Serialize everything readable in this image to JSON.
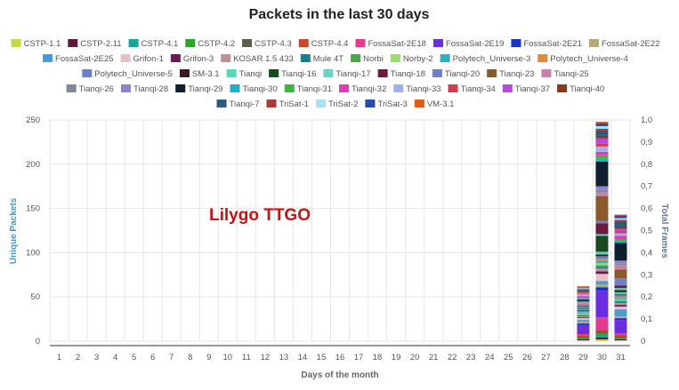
{
  "chart_data": {
    "type": "bar",
    "stacked": true,
    "title": "Packets in the last 30 days",
    "xlabel": "Days of the month",
    "ylabel": "Unique Packets",
    "y2label": "Total Frames",
    "watermark": "Lilygo TTGO",
    "categories": [
      "1",
      "2",
      "3",
      "4",
      "5",
      "6",
      "7",
      "8",
      "9",
      "10",
      "11",
      "12",
      "13",
      "14",
      "15",
      "16",
      "17",
      "18",
      "19",
      "20",
      "21",
      "22",
      "23",
      "24",
      "25",
      "26",
      "27",
      "28",
      "29",
      "30",
      "31"
    ],
    "ylim": [
      0,
      250
    ],
    "yticks": [
      "0",
      "50",
      "100",
      "150",
      "200",
      "250"
    ],
    "y2lim": [
      0,
      1
    ],
    "y2ticks": [
      "0",
      "0,1",
      "0,2",
      "0,3",
      "0,4",
      "0,5",
      "0,6",
      "0,7",
      "0,8",
      "0,9",
      "1,0"
    ],
    "grid": true,
    "legend_position": "top",
    "series": [
      {
        "name": "CSTP-1.1",
        "color": "#c6d84a",
        "values": {
          "29": 1,
          "30": 2,
          "31": 1
        }
      },
      {
        "name": "CSTP-2.11",
        "color": "#5b1a3a",
        "values": {
          "29": 1,
          "30": 2,
          "31": 1
        }
      },
      {
        "name": "CSTP-4.1",
        "color": "#1aa79b",
        "values": {
          "29": 1,
          "30": 2,
          "31": 1
        }
      },
      {
        "name": "CSTP-4.2",
        "color": "#2ea32e",
        "values": {
          "29": 1,
          "30": 3,
          "31": 1
        }
      },
      {
        "name": "CSTP-4.3",
        "color": "#5a5f4a",
        "values": {
          "29": 1,
          "30": 2,
          "31": 1
        }
      },
      {
        "name": "CSTP-4.4",
        "color": "#c8492c",
        "values": {
          "29": 1,
          "30": 2,
          "31": 2
        }
      },
      {
        "name": "FossaSat-2E18",
        "color": "#e63a8c",
        "values": {
          "29": 2,
          "30": 14,
          "31": 2
        }
      },
      {
        "name": "FossaSat-2E19",
        "color": "#6a2ee0",
        "values": {
          "29": 10,
          "30": 30,
          "31": 15
        }
      },
      {
        "name": "FossaSat-2E21",
        "color": "#1a33c9",
        "values": {
          "29": 2,
          "30": 4,
          "31": 2
        }
      },
      {
        "name": "FossaSat-2E22",
        "color": "#b5ab7a",
        "values": {
          "29": 2,
          "30": 3,
          "31": 2
        }
      },
      {
        "name": "FossaSat-2E25",
        "color": "#4a9bd1",
        "values": {
          "29": 2,
          "30": 4,
          "31": 8
        }
      },
      {
        "name": "Grifon-1",
        "color": "#e8c1c6",
        "values": {
          "29": 2,
          "30": 8,
          "31": 3
        }
      },
      {
        "name": "Grifon-3",
        "color": "#6b1a55",
        "values": {
          "29": 1,
          "30": 3,
          "31": 2
        }
      },
      {
        "name": "KOSAR 1.5 433",
        "color": "#c09098",
        "values": {
          "29": 1,
          "30": 3,
          "31": 2
        }
      },
      {
        "name": "Mule 4T",
        "color": "#1a7f8c",
        "values": {
          "29": 1,
          "30": 2,
          "31": 2
        }
      },
      {
        "name": "Norbi",
        "color": "#4aa84a",
        "values": {
          "29": 1,
          "30": 2,
          "31": 1
        }
      },
      {
        "name": "Norby-2",
        "color": "#9be06a",
        "values": {
          "29": 1,
          "30": 2,
          "31": 1
        }
      },
      {
        "name": "Polytech_Universe-3",
        "color": "#2ab3c6",
        "values": {
          "29": 1,
          "30": 3,
          "31": 2
        }
      },
      {
        "name": "Polytech_Universe-4",
        "color": "#e08a3a",
        "values": {
          "29": 1,
          "30": 2,
          "31": 1
        }
      },
      {
        "name": "Polytech_Universe-5",
        "color": "#6a80c8",
        "values": {
          "29": 1,
          "30": 3,
          "31": 2
        }
      },
      {
        "name": "SM-3.1",
        "color": "#3a1a22",
        "values": {
          "29": 1,
          "30": 2,
          "31": 1
        }
      },
      {
        "name": "Tianqi",
        "color": "#5ad6b6",
        "values": {
          "29": 1,
          "30": 3,
          "31": 2
        }
      },
      {
        "name": "Tianqi-16",
        "color": "#1a4a22",
        "values": {
          "29": 1,
          "30": 18,
          "31": 3
        }
      },
      {
        "name": "Tianqi-17",
        "color": "#6ad1c6",
        "values": {
          "29": 1,
          "30": 2,
          "31": 2
        }
      },
      {
        "name": "Tianqi-18",
        "color": "#6a1a3a",
        "values": {
          "29": 1,
          "30": 12,
          "31": 3
        }
      },
      {
        "name": "Tianqi-20",
        "color": "#7080c0",
        "values": {
          "29": 1,
          "30": 3,
          "31": 8
        }
      },
      {
        "name": "Tianqi-23",
        "color": "#8a5a2a",
        "values": {
          "29": 1,
          "30": 28,
          "31": 10
        }
      },
      {
        "name": "Tianqi-25",
        "color": "#c880a8",
        "values": {
          "29": 2,
          "30": 4,
          "31": 5
        }
      },
      {
        "name": "Tianqi-26",
        "color": "#808898",
        "values": {
          "29": 1,
          "30": 3,
          "31": 2
        }
      },
      {
        "name": "Tianqi-28",
        "color": "#8a84c8",
        "values": {
          "29": 1,
          "30": 4,
          "31": 3
        }
      },
      {
        "name": "Tianqi-29",
        "color": "#0e2030",
        "values": {
          "29": 2,
          "30": 28,
          "31": 20
        }
      },
      {
        "name": "Tianqi-30",
        "color": "#1ab0c8",
        "values": {
          "29": 1,
          "30": 3,
          "31": 2
        }
      },
      {
        "name": "Tianqi-31",
        "color": "#3ab83a",
        "values": {
          "29": 1,
          "30": 4,
          "31": 2
        }
      },
      {
        "name": "Tianqi-32",
        "color": "#e838b8",
        "values": {
          "29": 2,
          "30": 4,
          "31": 4
        }
      },
      {
        "name": "Tianqi-33",
        "color": "#a0b0e8",
        "values": {
          "29": 2,
          "30": 6,
          "31": 3
        }
      },
      {
        "name": "Tianqi-34",
        "color": "#d83a4a",
        "values": {
          "29": 1,
          "30": 3,
          "31": 2
        }
      },
      {
        "name": "Tianqi-37",
        "color": "#b848e0",
        "values": {
          "29": 1,
          "30": 6,
          "31": 3
        }
      },
      {
        "name": "Tianqi-40",
        "color": "#8a3a1a",
        "values": {
          "29": 1,
          "30": 3,
          "31": 2
        }
      },
      {
        "name": "Tianqi-7",
        "color": "#2a5a7a",
        "values": {
          "29": 2,
          "30": 6,
          "31": 6
        }
      },
      {
        "name": "TriSat-1",
        "color": "#a8383a",
        "values": {
          "29": 1,
          "30": 2,
          "31": 2
        }
      },
      {
        "name": "TriSat-2",
        "color": "#a8e0f0",
        "values": {
          "29": 1,
          "30": 3,
          "31": 2
        }
      },
      {
        "name": "TriSat-3",
        "color": "#2a4aa8",
        "values": {
          "29": 1,
          "30": 3,
          "31": 3
        }
      },
      {
        "name": "VM-3.1",
        "color": "#e05a1a",
        "values": {
          "29": 1,
          "30": 2,
          "31": 1
        }
      }
    ]
  },
  "colors": {
    "left_axis_title": "#3a9bd8",
    "right_axis_title": "#6a7a8a",
    "grid": "#e6e6e6",
    "axis_line": "#333333"
  }
}
